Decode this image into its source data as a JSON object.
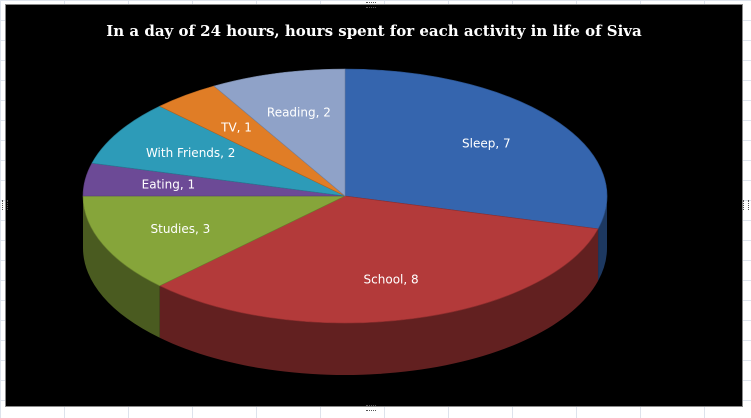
{
  "chart_data": {
    "type": "pie",
    "title": "In a day of 24 hours, hours spent for each activity in life of Siva",
    "slices": [
      {
        "label": "Sleep",
        "value": 7,
        "display": "Sleep, 7",
        "color": "#3565ae"
      },
      {
        "label": "School",
        "value": 8,
        "display": "School, 8",
        "color": "#b33a3a"
      },
      {
        "label": "Studies",
        "value": 3,
        "display": "Studies, 3",
        "color": "#86a53a"
      },
      {
        "label": "Eating",
        "value": 1,
        "display": "Eating, 1",
        "color": "#6c4a96"
      },
      {
        "label": "With Friends",
        "value": 2,
        "display": "With Friends, 2",
        "color": "#2d9bb8"
      },
      {
        "label": "TV",
        "value": 1,
        "display": "TV, 1",
        "color": "#e07d26"
      },
      {
        "label": "Reading",
        "value": 2,
        "display": "Reading, 2",
        "color": "#8fa2c8"
      }
    ],
    "legend": "none",
    "3d": true
  }
}
